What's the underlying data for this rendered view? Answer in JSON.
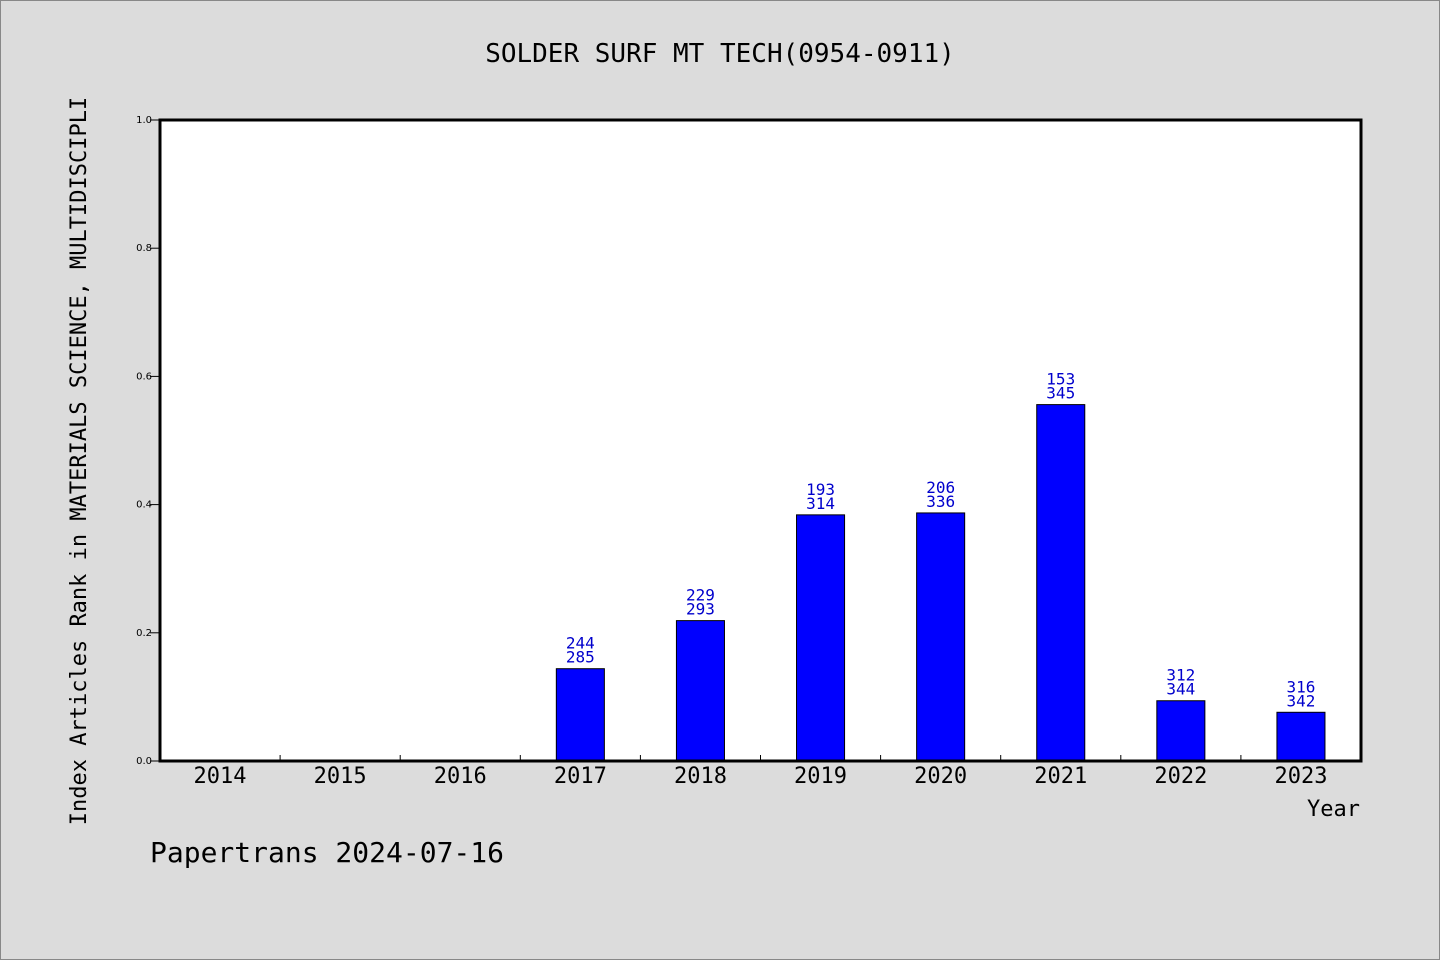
{
  "chart_data": {
    "type": "bar",
    "title": "SOLDER SURF MT TECH(0954-0911)",
    "xlabel": "Year",
    "ylabel": "Index Articles Rank in MATERIALS SCIENCE, MULTIDISCIPLI",
    "categories": [
      "2014",
      "2015",
      "2016",
      "2017",
      "2018",
      "2019",
      "2020",
      "2021",
      "2022",
      "2023"
    ],
    "values": [
      null,
      null,
      null,
      0.144,
      0.219,
      0.384,
      0.387,
      0.556,
      0.094,
      0.076
    ],
    "rank_labels": [
      null,
      null,
      null,
      "244",
      "229",
      "193",
      "206",
      "153",
      "312",
      "316"
    ],
    "total_labels": [
      null,
      null,
      null,
      "285",
      "293",
      "314",
      "336",
      "345",
      "344",
      "342"
    ],
    "ylim": [
      0.0,
      1.0
    ],
    "yticks": [
      "0.0",
      "0.2",
      "0.4",
      "0.6",
      "0.8",
      "1.0"
    ],
    "grid": false,
    "bar_color": "#0000ff",
    "label_color": "#0000cc"
  },
  "footer": {
    "credit": "Papertrans 2024-07-16"
  }
}
